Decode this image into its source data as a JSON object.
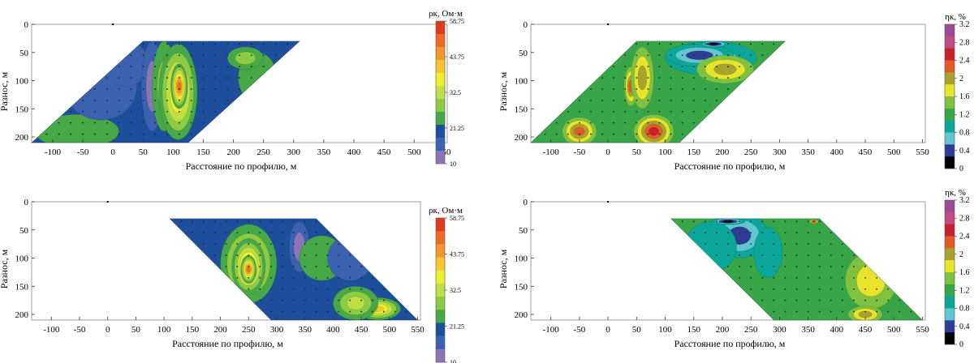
{
  "chart_data": [
    {
      "id": "rho-top",
      "type": "heatmap",
      "quantity": "rho",
      "xlabel": "Расстояние по профилю, м",
      "ylabel": "Разнос, м",
      "x_ticks": [
        "-100",
        "-50",
        "0",
        "50",
        "100",
        "150",
        "200",
        "250",
        "300",
        "350",
        "400",
        "450",
        "500",
        "550"
      ],
      "y_ticks": [
        "0",
        "50",
        "100",
        "150",
        "200"
      ],
      "xlim": [
        -135,
        555
      ],
      "ylim": [
        0,
        210
      ],
      "domain": {
        "top_y": 30,
        "bottom_y": 210,
        "top_x": [
          50,
          310
        ],
        "bottom_x": [
          -135,
          125
        ]
      },
      "electrode_marker_x": 0,
      "colorbar": {
        "title": "ρк, Ом·м",
        "levels": [
          "58.75",
          "43.75",
          "32.5",
          "21.25",
          "10"
        ],
        "colors": [
          "#e03a22",
          "#ef6a25",
          "#f4962a",
          "#f7c52c",
          "#eef02c",
          "#bfdf45",
          "#8ccc43",
          "#46a846",
          "#1d4f9c",
          "#3a62b0",
          "#8c75b5"
        ]
      },
      "anomalies": [
        {
          "x": -60,
          "y": 190,
          "level": 7,
          "rx": 70,
          "ry": 30
        },
        {
          "x": -20,
          "y": 110,
          "level": 9,
          "rx": 60,
          "ry": 60
        },
        {
          "x": 20,
          "y": 70,
          "level": 9,
          "rx": 40,
          "ry": 40
        },
        {
          "x": 65,
          "y": 110,
          "level": 10,
          "rx": 18,
          "ry": 80
        },
        {
          "x": 85,
          "y": 110,
          "level": 6,
          "rx": 20,
          "ry": 80
        },
        {
          "x": 108,
          "y": 120,
          "level": 3,
          "rx": 32,
          "ry": 85
        },
        {
          "x": 110,
          "y": 110,
          "level": 1,
          "rx": 14,
          "ry": 40
        },
        {
          "x": 240,
          "y": 95,
          "level": 8,
          "rx": 32,
          "ry": 45
        },
        {
          "x": 220,
          "y": 60,
          "level": 6,
          "rx": 30,
          "ry": 20
        }
      ]
    },
    {
      "id": "eta-top",
      "type": "heatmap",
      "quantity": "eta",
      "xlabel": "Расстояние по профилю, м",
      "ylabel": "Разнос, м",
      "x_ticks": [
        "-100",
        "-50",
        "0",
        "50",
        "100",
        "150",
        "200",
        "250",
        "300",
        "350",
        "400",
        "450",
        "500",
        "550"
      ],
      "y_ticks": [
        "0",
        "50",
        "100",
        "150",
        "200"
      ],
      "xlim": [
        -135,
        555
      ],
      "ylim": [
        0,
        210
      ],
      "domain": {
        "top_y": 30,
        "bottom_y": 210,
        "top_x": [
          50,
          310
        ],
        "bottom_x": [
          -135,
          125
        ]
      },
      "electrode_marker_x": 0,
      "colorbar": {
        "title": "ηк, %",
        "levels": [
          "3.2",
          "2.8",
          "2.4",
          "2",
          "1.6",
          "1.2",
          "0.8",
          "0.4",
          "0"
        ],
        "colors": [
          "#9a4c97",
          "#c04c80",
          "#c8202e",
          "#e35a28",
          "#a8a22e",
          "#e8e42a",
          "#7fc241",
          "#37a548",
          "#0aa69a",
          "#60c7d1",
          "#2e3c93",
          "#000000"
        ]
      },
      "anomalies": [
        {
          "x": -50,
          "y": 190,
          "level": 3,
          "rx": 30,
          "ry": 25
        },
        {
          "x": 80,
          "y": 190,
          "level": 2,
          "rx": 35,
          "ry": 30
        },
        {
          "x": 40,
          "y": 110,
          "level": 3,
          "rx": 12,
          "ry": 35
        },
        {
          "x": 60,
          "y": 95,
          "level": 4,
          "rx": 20,
          "ry": 55
        },
        {
          "x": 180,
          "y": 60,
          "level": 9,
          "rx": 80,
          "ry": 30
        },
        {
          "x": 160,
          "y": 55,
          "level": 10,
          "rx": 60,
          "ry": 20
        },
        {
          "x": 185,
          "y": 35,
          "level": 11,
          "rx": 25,
          "ry": 6
        },
        {
          "x": 205,
          "y": 80,
          "level": 4,
          "rx": 50,
          "ry": 25
        }
      ]
    },
    {
      "id": "rho-bottom",
      "type": "heatmap",
      "quantity": "rho",
      "xlabel": "Расстояние по профилю, м",
      "ylabel": "Разнос, м",
      "x_ticks": [
        "-100",
        "-50",
        "0",
        "50",
        "100",
        "150",
        "200",
        "250",
        "300",
        "350",
        "400",
        "450",
        "500",
        "550"
      ],
      "y_ticks": [
        "0",
        "50",
        "100",
        "150",
        "200"
      ],
      "xlim": [
        -135,
        555
      ],
      "ylim": [
        0,
        210
      ],
      "domain": {
        "top_y": 30,
        "bottom_y": 210,
        "top_x": [
          110,
          370
        ],
        "bottom_x": [
          290,
          550
        ]
      },
      "electrode_marker_x": 0,
      "colorbar": {
        "title": "ρк, Ом·м",
        "levels": [
          "58.75",
          "43.75",
          "32.5",
          "21.25",
          "10"
        ],
        "colors": [
          "#e03a22",
          "#ef6a25",
          "#f4962a",
          "#f7c52c",
          "#eef02c",
          "#bfdf45",
          "#8ccc43",
          "#46a846",
          "#1d4f9c",
          "#3a62b0",
          "#8c75b5"
        ]
      },
      "anomalies": [
        {
          "x": 250,
          "y": 110,
          "level": 4,
          "rx": 50,
          "ry": 70
        },
        {
          "x": 250,
          "y": 115,
          "level": 2,
          "rx": 30,
          "ry": 50
        },
        {
          "x": 250,
          "y": 120,
          "level": 1,
          "rx": 14,
          "ry": 25
        },
        {
          "x": 340,
          "y": 80,
          "level": 10,
          "rx": 18,
          "ry": 45
        },
        {
          "x": 380,
          "y": 100,
          "level": 8,
          "rx": 40,
          "ry": 40
        },
        {
          "x": 430,
          "y": 100,
          "level": 9,
          "rx": 40,
          "ry": 40
        },
        {
          "x": 480,
          "y": 190,
          "level": 3,
          "rx": 40,
          "ry": 20
        },
        {
          "x": 440,
          "y": 180,
          "level": 5,
          "rx": 40,
          "ry": 30
        }
      ]
    },
    {
      "id": "eta-bottom",
      "type": "heatmap",
      "quantity": "eta",
      "xlabel": "Расстояние по профилю, м",
      "ylabel": "Разнос, м",
      "x_ticks": [
        "-100",
        "-50",
        "0",
        "50",
        "100",
        "150",
        "200",
        "250",
        "300",
        "350",
        "400",
        "450",
        "500",
        "550"
      ],
      "y_ticks": [
        "0",
        "50",
        "100",
        "150",
        "200"
      ],
      "xlim": [
        -135,
        555
      ],
      "ylim": [
        0,
        210
      ],
      "domain": {
        "top_y": 30,
        "bottom_y": 210,
        "top_x": [
          110,
          370
        ],
        "bottom_x": [
          290,
          550
        ]
      },
      "electrode_marker_x": 0,
      "colorbar": {
        "title": "ηк, %",
        "levels": [
          "3.2",
          "2.8",
          "2.4",
          "2",
          "1.6",
          "1.2",
          "0.8",
          "0.4",
          "0"
        ],
        "colors": [
          "#9a4c97",
          "#c04c80",
          "#c8202e",
          "#e35a28",
          "#a8a22e",
          "#e8e42a",
          "#7fc241",
          "#37a548",
          "#0aa69a",
          "#60c7d1",
          "#2e3c93",
          "#000000"
        ]
      },
      "anomalies": [
        {
          "x": 230,
          "y": 60,
          "level": 10,
          "rx": 50,
          "ry": 40
        },
        {
          "x": 210,
          "y": 35,
          "level": 11,
          "rx": 30,
          "ry": 6
        },
        {
          "x": 180,
          "y": 80,
          "level": 8,
          "rx": 45,
          "ry": 45
        },
        {
          "x": 280,
          "y": 90,
          "level": 8,
          "rx": 25,
          "ry": 45
        },
        {
          "x": 460,
          "y": 140,
          "level": 5,
          "rx": 45,
          "ry": 50
        },
        {
          "x": 450,
          "y": 200,
          "level": 4,
          "rx": 30,
          "ry": 15
        },
        {
          "x": 360,
          "y": 35,
          "level": 2,
          "rx": 8,
          "ry": 4
        }
      ]
    }
  ]
}
